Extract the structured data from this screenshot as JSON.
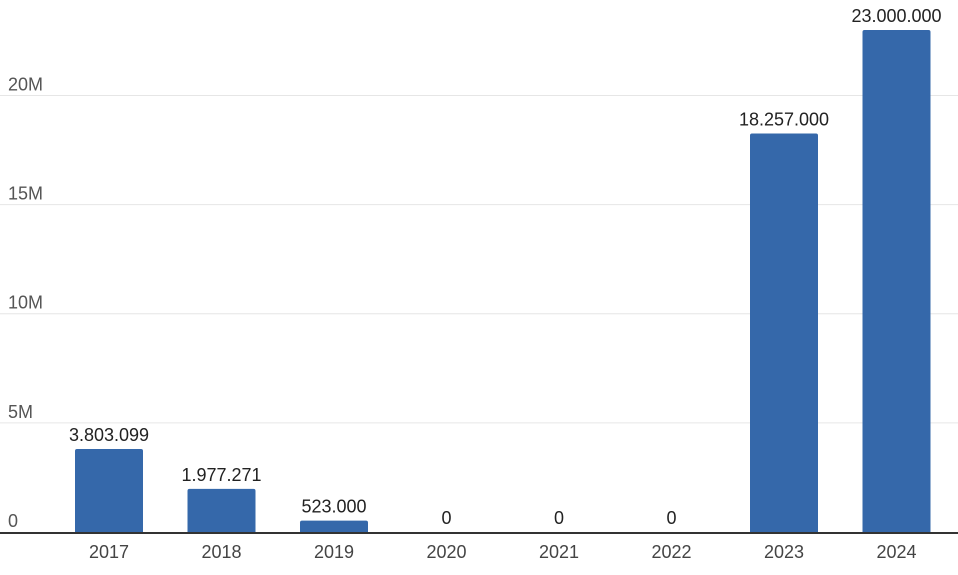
{
  "chart_data": {
    "type": "bar",
    "title": "",
    "xlabel": "",
    "ylabel": "",
    "categories": [
      "2017",
      "2018",
      "2019",
      "2020",
      "2021",
      "2022",
      "2023",
      "2024"
    ],
    "values": [
      3803099,
      1977271,
      523000,
      0,
      0,
      0,
      18257000,
      23000000
    ],
    "data_labels": [
      "3.803.099",
      "1.977.271",
      "523.000",
      "0",
      "0",
      "0",
      "18.257.000",
      "23.000.000"
    ],
    "ylim": [
      0,
      23000000
    ],
    "y_ticks": [
      0,
      5000000,
      10000000,
      15000000,
      20000000
    ],
    "y_tick_labels": [
      "0",
      "5M",
      "10M",
      "15M",
      "20M"
    ],
    "grid": true,
    "legend": "none",
    "bar_color": "#3568aa",
    "baseline_color": "#333333",
    "grid_color": "#e6e6e6"
  }
}
